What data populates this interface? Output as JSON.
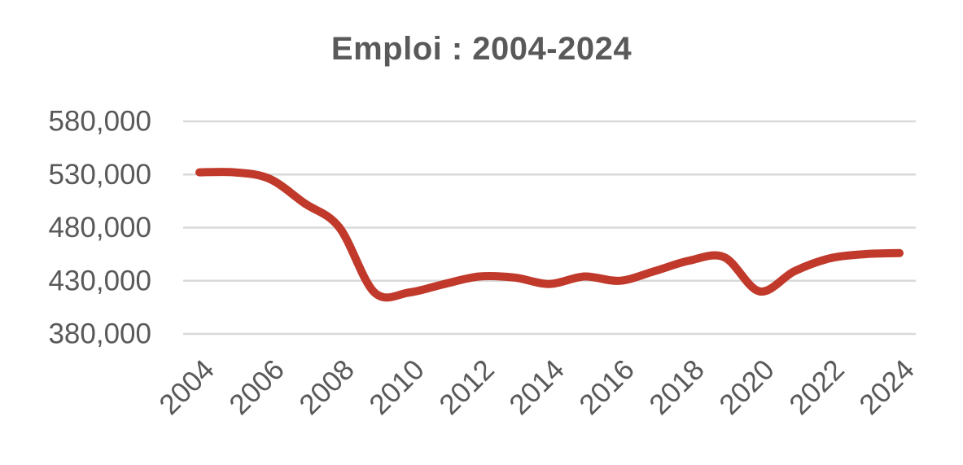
{
  "chart_data": {
    "type": "line",
    "title": "Emploi : 2004-2024",
    "xlabel": "",
    "ylabel": "",
    "x": [
      2004,
      2005,
      2006,
      2007,
      2008,
      2009,
      2010,
      2011,
      2012,
      2013,
      2014,
      2015,
      2016,
      2017,
      2018,
      2019,
      2020,
      2021,
      2022,
      2023,
      2024
    ],
    "series": [
      {
        "values": [
          532000,
          532000,
          526000,
          503000,
          480000,
          419000,
          419000,
          427000,
          434000,
          433000,
          427000,
          434000,
          430000,
          439000,
          449000,
          452000,
          420000,
          439000,
          451000,
          455000,
          456000
        ]
      }
    ],
    "x_ticks": [
      "2004",
      "2006",
      "2008",
      "2010",
      "2012",
      "2014",
      "2016",
      "2018",
      "2020",
      "2022",
      "2024"
    ],
    "y_ticks": [
      "380,000",
      "430,000",
      "480,000",
      "530,000",
      "580,000"
    ],
    "ylim": [
      380000,
      580000
    ],
    "grid": true,
    "legend": "none",
    "colors": {
      "line": "#C0392B",
      "grid": "#D9D9D9",
      "text": "#595959"
    }
  }
}
